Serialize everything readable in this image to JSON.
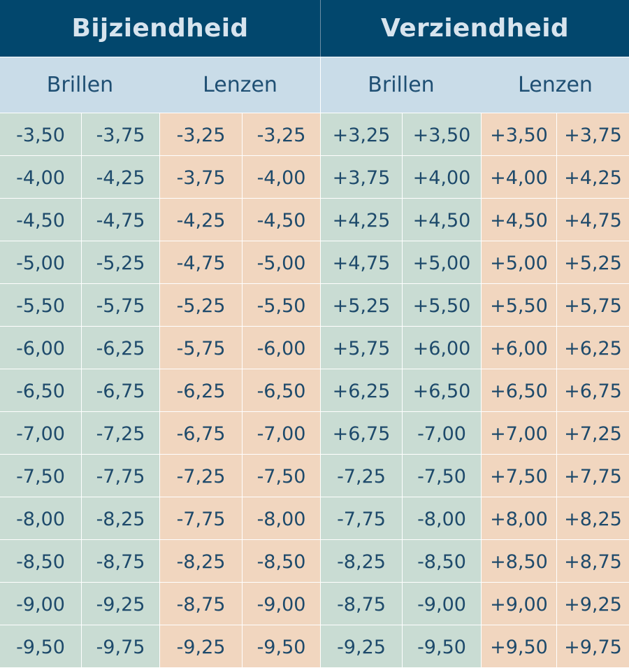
{
  "headers": {
    "myopia": "Bijziendheid",
    "hyperopia": "Verziendheid"
  },
  "subheaders": [
    "Brillen",
    "Lenzen",
    "Brillen",
    "Lenzen"
  ],
  "rows": [
    [
      "-3,50",
      "-3,75",
      "-3,25",
      "-3,25",
      "+3,25",
      "+3,50",
      "+3,50",
      "+3,75"
    ],
    [
      "-4,00",
      "-4,25",
      "-3,75",
      "-4,00",
      "+3,75",
      "+4,00",
      "+4,00",
      "+4,25"
    ],
    [
      "-4,50",
      "-4,75",
      "-4,25",
      "-4,50",
      "+4,25",
      "+4,50",
      "+4,50",
      "+4,75"
    ],
    [
      "-5,00",
      "-5,25",
      "-4,75",
      "-5,00",
      "+4,75",
      "+5,00",
      "+5,00",
      "+5,25"
    ],
    [
      "-5,50",
      "-5,75",
      "-5,25",
      "-5,50",
      "+5,25",
      "+5,50",
      "+5,50",
      "+5,75"
    ],
    [
      "-6,00",
      "-6,25",
      "-5,75",
      "-6,00",
      "+5,75",
      "+6,00",
      "+6,00",
      "+6,25"
    ],
    [
      "-6,50",
      "-6,75",
      "-6,25",
      "-6,50",
      "+6,25",
      "+6,50",
      "+6,50",
      "+6,75"
    ],
    [
      "-7,00",
      "-7,25",
      "-6,75",
      "-7,00",
      "+6,75",
      "-7,00",
      "+7,00",
      "+7,25"
    ],
    [
      "-7,50",
      "-7,75",
      "-7,25",
      "-7,50",
      "-7,25",
      "-7,50",
      "+7,50",
      "+7,75"
    ],
    [
      "-8,00",
      "-8,25",
      "-7,75",
      "-8,00",
      "-7,75",
      "-8,00",
      "+8,00",
      "+8,25"
    ],
    [
      "-8,50",
      "-8,75",
      "-8,25",
      "-8,50",
      "-8,25",
      "-8,50",
      "+8,50",
      "+8,75"
    ],
    [
      "-9,00",
      "-9,25",
      "-8,75",
      "-9,00",
      "-8,75",
      "-9,00",
      "+9,00",
      "+9,25"
    ],
    [
      "-9,50",
      "-9,75",
      "-9,25",
      "-9,50",
      "-9,25",
      "-9,50",
      "+9,50",
      "+9,75"
    ]
  ],
  "colors": {
    "header_bg": "#02476d",
    "subheader_bg": "#c9dce8",
    "glasses_bg": "#c9dcd3",
    "lenses_bg": "#f1d6bf",
    "text": "#1e4a6b"
  }
}
